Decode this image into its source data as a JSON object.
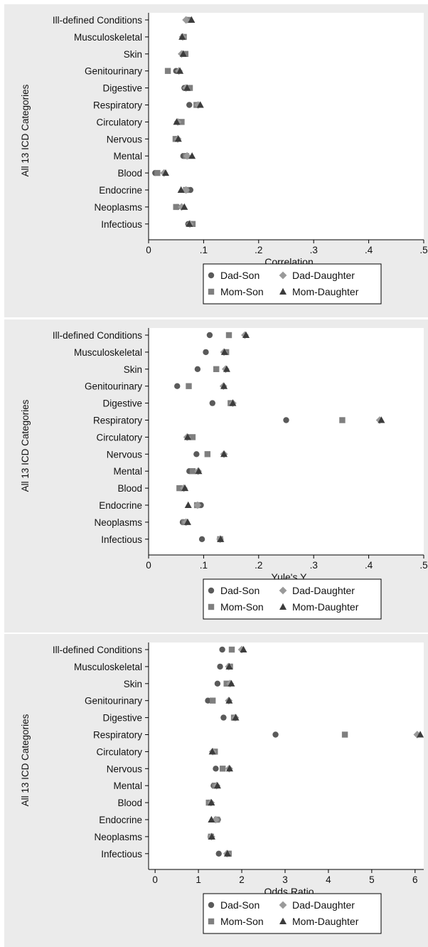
{
  "colors": {
    "outer_background": "#ebebeb",
    "plot_background": "#ffffff",
    "Dad-Son": "#5a5a5a",
    "Dad-Daughter": "#9a9a9a",
    "Mom-Son": "#7f7f7f",
    "Mom-Daughter": "#3c3c3c"
  },
  "chart_data": [
    {
      "type": "scatter",
      "title": "",
      "xlabel": "Correlation",
      "ylabel": "All 13 ICD Categories",
      "xlim": [
        0,
        0.5
      ],
      "x_ticks": [
        0,
        0.1,
        0.2,
        0.3,
        0.4,
        0.5
      ],
      "x_tick_labels": [
        "0",
        ".1",
        ".2",
        ".3",
        ".4",
        ".5"
      ],
      "categories": [
        "Ill-defined Conditions",
        "Musculoskeletal",
        "Skin",
        "Genitourinary",
        "Digestive",
        "Respiratory",
        "Circulatory",
        "Nervous",
        "Mental",
        "Blood",
        "Endocrine",
        "Neoplasms",
        "Infectious"
      ],
      "legend_position": "bottom",
      "grid": false,
      "series": [
        {
          "name": "Dad-Son",
          "marker": "circle",
          "values": [
            0.07,
            0.063,
            0.062,
            0.05,
            0.065,
            0.074,
            0.055,
            0.05,
            0.063,
            0.012,
            0.076,
            0.052,
            0.072
          ]
        },
        {
          "name": "Dad-Daughter",
          "marker": "diamond",
          "values": [
            0.068,
            0.062,
            0.06,
            0.055,
            0.068,
            0.09,
            0.053,
            0.053,
            0.07,
            0.028,
            0.068,
            0.06,
            0.075
          ]
        },
        {
          "name": "Mom-Son",
          "marker": "square",
          "values": [
            0.072,
            0.064,
            0.067,
            0.035,
            0.075,
            0.087,
            0.06,
            0.049,
            0.068,
            0.016,
            0.068,
            0.05,
            0.08
          ]
        },
        {
          "name": "Mom-Daughter",
          "marker": "triangle",
          "values": [
            0.078,
            0.061,
            0.063,
            0.057,
            0.07,
            0.094,
            0.051,
            0.054,
            0.079,
            0.031,
            0.059,
            0.065,
            0.074
          ]
        }
      ]
    },
    {
      "type": "scatter",
      "title": "",
      "xlabel": "Yule's Y",
      "ylabel": "All 13 ICD Categories",
      "xlim": [
        0,
        0.5
      ],
      "x_ticks": [
        0,
        0.1,
        0.2,
        0.3,
        0.4,
        0.5
      ],
      "x_tick_labels": [
        "0",
        ".1",
        ".2",
        ".3",
        ".4",
        ".5"
      ],
      "categories": [
        "Ill-defined Conditions",
        "Musculoskeletal",
        "Skin",
        "Genitourinary",
        "Digestive",
        "Respiratory",
        "Circulatory",
        "Nervous",
        "Mental",
        "Blood",
        "Endocrine",
        "Neoplasms",
        "Infectious"
      ],
      "legend_position": "bottom",
      "grid": false,
      "series": [
        {
          "name": "Dad-Son",
          "marker": "circle",
          "values": [
            0.111,
            0.104,
            0.089,
            0.052,
            0.116,
            0.25,
            0.072,
            0.087,
            0.074,
            0.058,
            0.095,
            0.062,
            0.097
          ]
        },
        {
          "name": "Dad-Daughter",
          "marker": "diamond",
          "values": [
            0.175,
            0.137,
            0.14,
            0.136,
            0.153,
            0.42,
            0.07,
            0.137,
            0.09,
            0.064,
            0.089,
            0.068,
            0.13
          ]
        },
        {
          "name": "Mom-Son",
          "marker": "square",
          "values": [
            0.146,
            0.141,
            0.123,
            0.073,
            0.149,
            0.352,
            0.08,
            0.107,
            0.08,
            0.056,
            0.088,
            0.065,
            0.13
          ]
        },
        {
          "name": "Mom-Daughter",
          "marker": "triangle",
          "values": [
            0.177,
            0.138,
            0.142,
            0.137,
            0.153,
            0.423,
            0.071,
            0.137,
            0.091,
            0.066,
            0.072,
            0.071,
            0.131
          ]
        }
      ]
    },
    {
      "type": "scatter",
      "title": "",
      "xlabel": "Odds Ratio",
      "ylabel": "All 13 ICD Categories",
      "xlim": [
        -0.15,
        6.2
      ],
      "x_ticks": [
        0,
        1,
        2,
        3,
        4,
        5,
        6
      ],
      "x_tick_labels": [
        "0",
        "1",
        "2",
        "3",
        "4",
        "5",
        "6"
      ],
      "categories": [
        "Ill-defined Conditions",
        "Musculoskeletal",
        "Skin",
        "Genitourinary",
        "Digestive",
        "Respiratory",
        "Circulatory",
        "Nervous",
        "Mental",
        "Blood",
        "Endocrine",
        "Neoplasms",
        "Infectious"
      ],
      "legend_position": "bottom",
      "grid": false,
      "series": [
        {
          "name": "Dad-Son",
          "marker": "circle",
          "values": [
            1.55,
            1.5,
            1.44,
            1.22,
            1.58,
            2.78,
            1.34,
            1.4,
            1.35,
            1.24,
            1.45,
            1.28,
            1.47
          ]
        },
        {
          "name": "Dad-Daughter",
          "marker": "diamond",
          "values": [
            2.0,
            1.7,
            1.73,
            1.7,
            1.85,
            6.05,
            1.33,
            1.71,
            1.42,
            1.29,
            1.4,
            1.3,
            1.66
          ]
        },
        {
          "name": "Mom-Son",
          "marker": "square",
          "values": [
            1.77,
            1.73,
            1.65,
            1.33,
            1.82,
            4.38,
            1.38,
            1.56,
            1.38,
            1.24,
            1.43,
            1.29,
            1.7
          ]
        },
        {
          "name": "Mom-Daughter",
          "marker": "triangle",
          "values": [
            2.04,
            1.71,
            1.76,
            1.71,
            1.86,
            6.12,
            1.32,
            1.72,
            1.44,
            1.3,
            1.3,
            1.31,
            1.67
          ]
        }
      ]
    }
  ]
}
